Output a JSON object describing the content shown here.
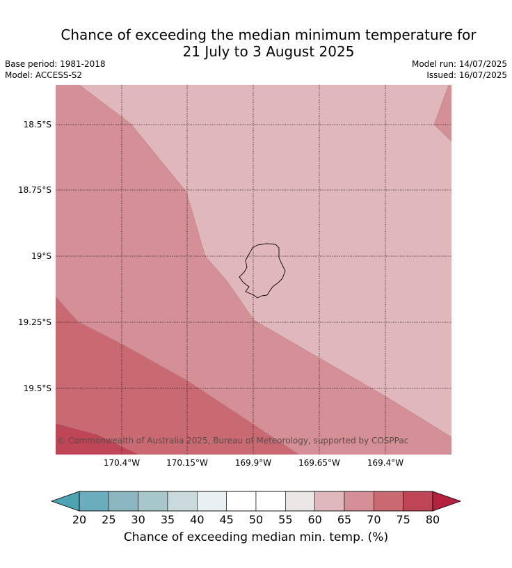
{
  "title_line1": "Chance of exceeding the median minimum temperature for",
  "title_line2": "21 July to 3 August 2025",
  "base_period": "Base period: 1981-2018",
  "model": "Model: ACCESS-S2",
  "model_run": "Model run: 14/07/2025",
  "issued": "Issued: 16/07/2025",
  "copyright": "© Commonwealth of Australia 2025, Bureau of Meteorology, supported by COSPPac",
  "lat_labels": [
    "18.5°S",
    "18.75°S",
    "19°S",
    "19.25°S",
    "19.5°S"
  ],
  "lon_labels": [
    "170.4°W",
    "170.15°W",
    "169.9°W",
    "169.65°W",
    "169.4°W"
  ],
  "colorbar": {
    "label": "Chance of exceeding median min. temp. (%)",
    "ticks": [
      "20",
      "25",
      "30",
      "35",
      "40",
      "45",
      "50",
      "55",
      "60",
      "65",
      "70",
      "75",
      "80"
    ],
    "colors": [
      "#6aaebe",
      "#8bb6c2",
      "#a8c7cc",
      "#c9d9dc",
      "#e9f0f1",
      "#ffffff",
      "#ffffff",
      "#ebe6e6",
      "#e0b8bc",
      "#d58f96",
      "#c96a73",
      "#bf4656"
    ],
    "under_color": "#4ea3b3",
    "over_color": "#b52240"
  },
  "map_colors": {
    "band_60_65": "#e0b8bc",
    "band_65_70": "#d58f96",
    "band_70_75": "#c96a73",
    "band_75_80": "#bf4656"
  }
}
